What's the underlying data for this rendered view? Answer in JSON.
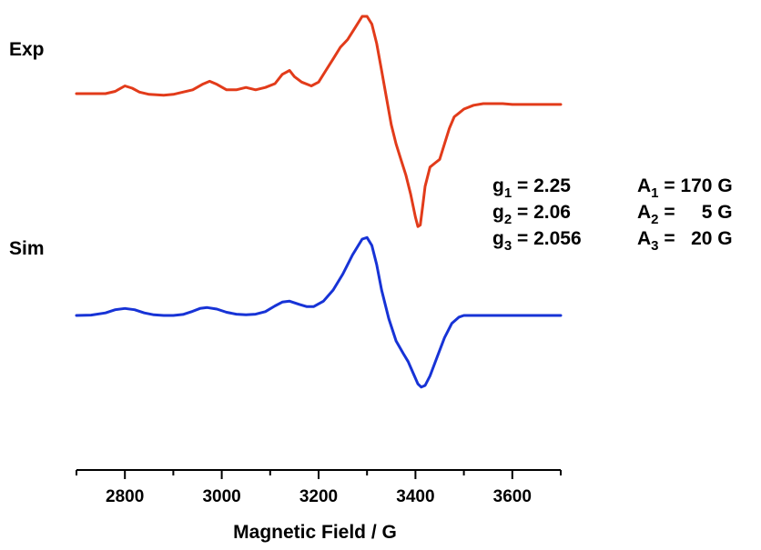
{
  "chart_data": {
    "type": "line",
    "xlabel": "Magnetic Field / G",
    "xlim": [
      2700,
      3700
    ],
    "xticks": [
      2800,
      3000,
      3200,
      3400,
      3600
    ],
    "grid": false,
    "legend": "none",
    "series": [
      {
        "name": "Exp",
        "color": "#e23b1a",
        "x": [
          2700,
          2730,
          2760,
          2780,
          2800,
          2815,
          2830,
          2850,
          2880,
          2900,
          2920,
          2940,
          2960,
          2975,
          2990,
          3010,
          3030,
          3050,
          3070,
          3090,
          3110,
          3125,
          3140,
          3150,
          3165,
          3185,
          3200,
          3215,
          3230,
          3245,
          3260,
          3275,
          3290,
          3300,
          3310,
          3320,
          3330,
          3340,
          3350,
          3360,
          3370,
          3380,
          3390,
          3400,
          3405,
          3410,
          3415,
          3420,
          3430,
          3440,
          3450,
          3460,
          3470,
          3480,
          3490,
          3500,
          3520,
          3540,
          3560,
          3580,
          3600,
          3620,
          3650,
          3680,
          3700
        ],
        "y": [
          0.0,
          0.0,
          0.0,
          0.03,
          0.1,
          0.07,
          0.02,
          -0.01,
          -0.02,
          -0.01,
          0.02,
          0.05,
          0.12,
          0.16,
          0.12,
          0.05,
          0.05,
          0.08,
          0.05,
          0.08,
          0.13,
          0.25,
          0.3,
          0.22,
          0.15,
          0.1,
          0.15,
          0.3,
          0.45,
          0.6,
          0.7,
          0.85,
          1.0,
          1.0,
          0.9,
          0.65,
          0.3,
          -0.05,
          -0.4,
          -0.65,
          -0.85,
          -1.05,
          -1.3,
          -1.6,
          -1.72,
          -1.7,
          -1.45,
          -1.2,
          -0.95,
          -0.9,
          -0.85,
          -0.65,
          -0.45,
          -0.3,
          -0.25,
          -0.2,
          -0.15,
          -0.13,
          -0.13,
          -0.13,
          -0.14,
          -0.14,
          -0.14,
          -0.14,
          -0.14
        ]
      },
      {
        "name": "Sim",
        "color": "#1733d6",
        "x": [
          2700,
          2730,
          2760,
          2780,
          2800,
          2820,
          2840,
          2860,
          2880,
          2900,
          2920,
          2940,
          2955,
          2970,
          2990,
          3010,
          3030,
          3050,
          3070,
          3090,
          3110,
          3125,
          3140,
          3160,
          3175,
          3190,
          3210,
          3230,
          3250,
          3270,
          3290,
          3300,
          3310,
          3320,
          3330,
          3345,
          3360,
          3375,
          3385,
          3395,
          3405,
          3412,
          3420,
          3430,
          3445,
          3460,
          3475,
          3490,
          3500,
          3520,
          3560,
          3620,
          3700
        ],
        "y": [
          0.0,
          0.01,
          0.08,
          0.18,
          0.22,
          0.18,
          0.08,
          0.02,
          0.0,
          0.0,
          0.03,
          0.13,
          0.22,
          0.25,
          0.2,
          0.1,
          0.04,
          0.02,
          0.04,
          0.12,
          0.3,
          0.42,
          0.45,
          0.35,
          0.28,
          0.28,
          0.45,
          0.8,
          1.3,
          1.9,
          2.4,
          2.45,
          2.2,
          1.6,
          0.8,
          -0.1,
          -0.8,
          -1.2,
          -1.45,
          -1.8,
          -2.15,
          -2.25,
          -2.2,
          -1.9,
          -1.3,
          -0.7,
          -0.25,
          -0.05,
          0.0,
          0.0,
          0.0,
          0.0,
          0.0
        ]
      }
    ]
  },
  "labels": {
    "exp": "Exp",
    "sim": "Sim"
  },
  "params": {
    "g1": {
      "sym": "g",
      "sub": "1",
      "rest": " = 2.25"
    },
    "g2": {
      "sym": "g",
      "sub": "2",
      "rest": " = 2.06"
    },
    "g3": {
      "sym": "g",
      "sub": "3",
      "rest": " = 2.056"
    },
    "a1": {
      "sym": "A",
      "sub": "1",
      "rest": " = 170 G"
    },
    "a2": {
      "sym": "A",
      "sub": "2",
      "rest": " =     5 G"
    },
    "a3": {
      "sym": "A",
      "sub": "3",
      "rest": " =   20 G"
    }
  }
}
